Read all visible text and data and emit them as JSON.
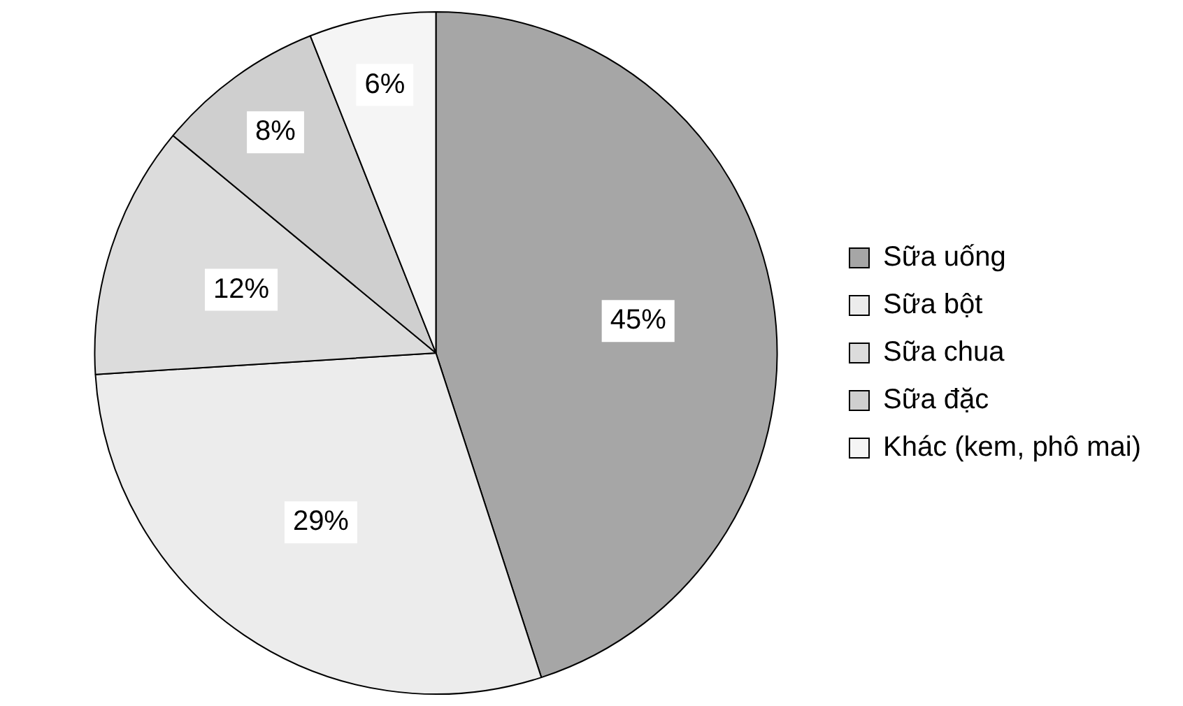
{
  "chart_data": {
    "type": "pie",
    "categories": [
      "Sữa uống",
      "Sữa bột",
      "Sữa chua",
      "Sữa đặc",
      "Khác (kem, phô mai)"
    ],
    "values": [
      45,
      29,
      12,
      8,
      6
    ],
    "colors": [
      "#a6a6a6",
      "#ececec",
      "#dcdcdc",
      "#cfcfcf",
      "#f5f5f5"
    ],
    "value_labels": [
      "45%",
      "29%",
      "12%",
      "8%",
      "6%"
    ],
    "legend": "right"
  }
}
